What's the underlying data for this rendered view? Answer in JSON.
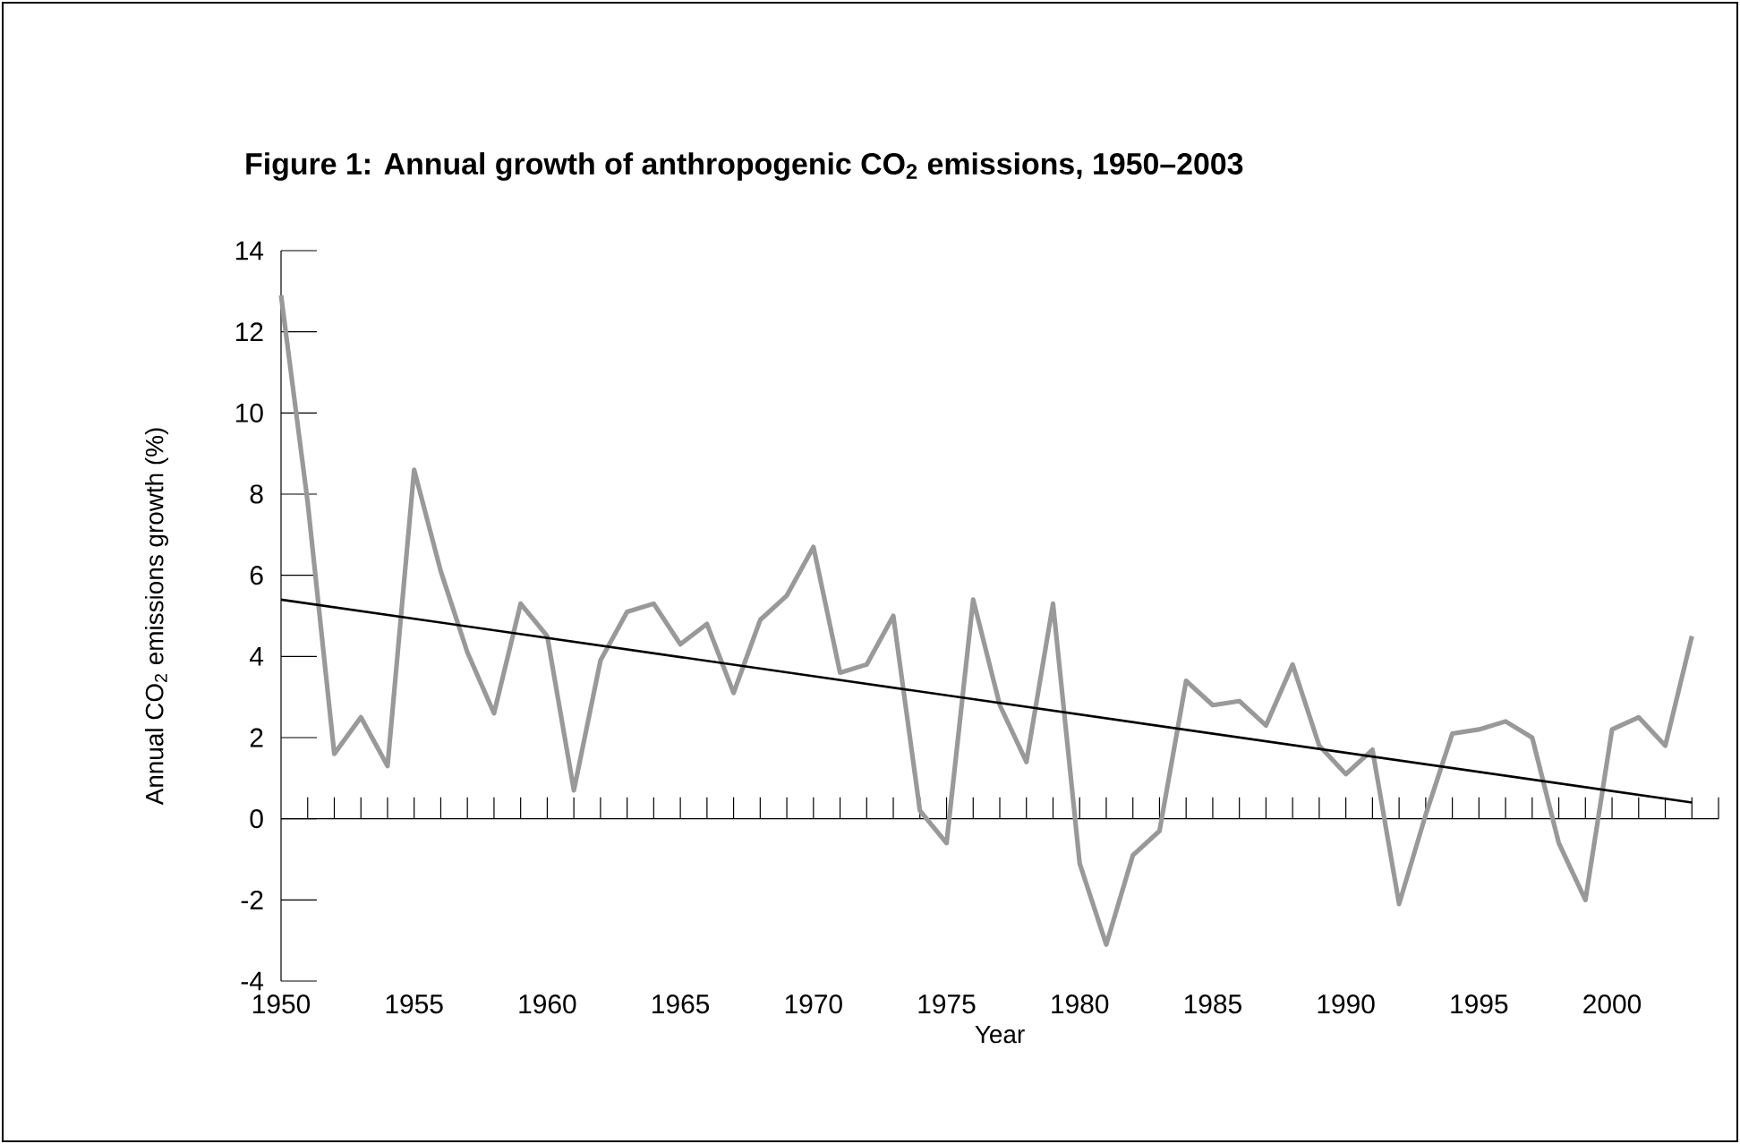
{
  "chart_data": {
    "type": "line",
    "title": "Figure 1: Annual growth of anthropogenic CO$_{2}$ emissions, 1950–2003",
    "xlabel": "Year",
    "ylabel": "Annual CO$_{2}$ emissions growth (%)",
    "xlim": [
      1950,
      2004
    ],
    "xticks": [
      1950,
      1955,
      1960,
      1965,
      1970,
      1975,
      1980,
      1985,
      1990,
      1995,
      2000
    ],
    "ylim": [
      -4,
      14
    ],
    "yticks": [
      -4,
      -2,
      0,
      2,
      4,
      6,
      8,
      10,
      12,
      14
    ],
    "marker": "none",
    "line_style": "solid",
    "series": [
      {
        "color": "#999999",
        "x": [
          1950,
          1951,
          1952,
          1953,
          1954,
          1955,
          1956,
          1957,
          1958,
          1959,
          1960,
          1961,
          1962,
          1963,
          1964,
          1965,
          1966,
          1967,
          1968,
          1969,
          1970,
          1971,
          1972,
          1973,
          1974,
          1975,
          1976,
          1977,
          1978,
          1979,
          1980,
          1981,
          1982,
          1983,
          1984,
          1985,
          1986,
          1987,
          1988,
          1989,
          1990,
          1991,
          1992,
          1993,
          1994,
          1995,
          1996,
          1997,
          1998,
          1999,
          2000,
          2001,
          2002,
          2003
        ],
        "values": [
          12.9,
          7.8,
          1.6,
          2.5,
          1.3,
          8.6,
          6.1,
          4.1,
          2.6,
          5.3,
          4.5,
          0.7,
          3.9,
          5.1,
          5.3,
          4.3,
          4.8,
          3.1,
          4.9,
          5.5,
          6.7,
          3.6,
          3.8,
          5.0,
          0.2,
          -0.6,
          5.4,
          2.8,
          1.4,
          5.3,
          -1.1,
          -3.1,
          -0.9,
          -0.3,
          3.4,
          2.8,
          2.9,
          2.3,
          3.8,
          1.8,
          1.1,
          1.7,
          -2.1,
          0.1,
          2.1,
          2.2,
          2.4,
          2.0,
          -0.6,
          -2.0,
          2.2,
          2.5,
          1.8,
          4.5
        ]
      },
      {
        "type": "line",
        "color": "#000000",
        "x": [
          1950,
          2003
        ],
        "values": [
          5.4,
          0.4
        ]
      }
    ]
  }
}
